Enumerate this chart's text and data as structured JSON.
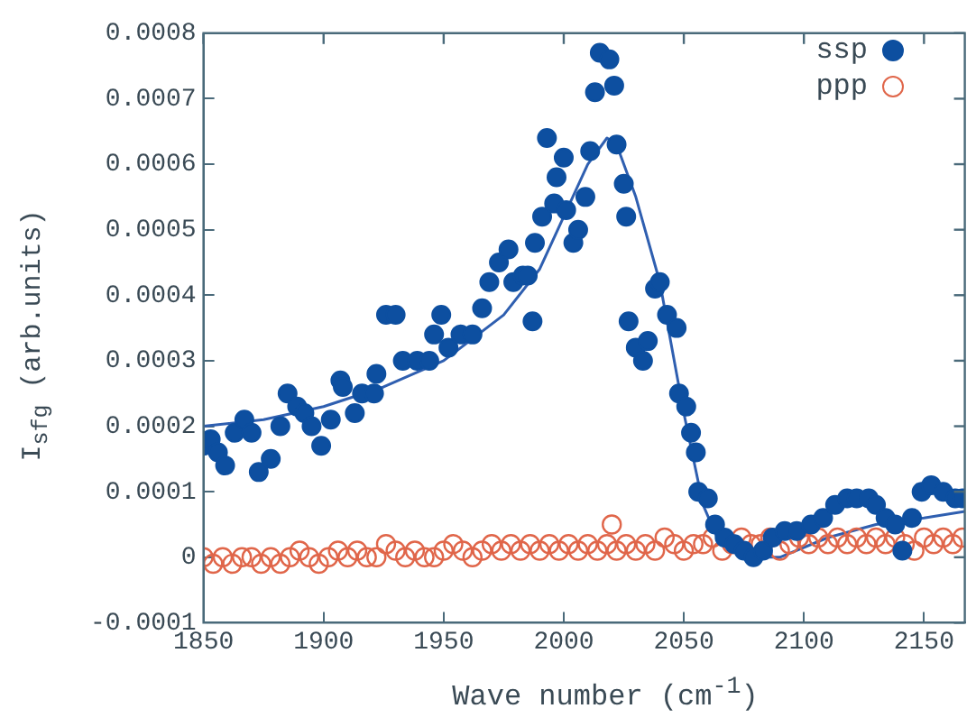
{
  "chart_data": {
    "type": "scatter",
    "xlabel": "Wave number (cm$^{-1}$)",
    "ylabel": "I$_{sfg}$ (arb.units)",
    "xlim": [
      1850,
      2167
    ],
    "xticks": [
      1850,
      1900,
      1950,
      2000,
      2050,
      2100,
      2150
    ],
    "ylim": [
      -0.0001,
      0.0008
    ],
    "yticks": [
      -0.0001,
      0,
      0.0001,
      0.0002,
      0.0003,
      0.0004,
      0.0005,
      0.0006,
      0.0007,
      0.0008
    ],
    "grid": false,
    "legend": "top right",
    "marker": "circle",
    "series": [
      {
        "name": "ssp",
        "color": "#0d4fa0",
        "x": [
          1850,
          1853,
          1856,
          1859,
          1863,
          1867,
          1870,
          1873,
          1878,
          1882,
          1885,
          1889,
          1892,
          1895,
          1899,
          1903,
          1907,
          1908,
          1913,
          1916,
          1921,
          1922,
          1926,
          1930,
          1933,
          1939,
          1944,
          1946,
          1949,
          1952,
          1957,
          1962,
          1966,
          1969,
          1973,
          1977,
          1979,
          1983,
          1985,
          1987,
          1988,
          1991,
          1993,
          1996,
          1997,
          2000,
          2001,
          2004,
          2006,
          2009,
          2011,
          2013,
          2015,
          2019,
          2021,
          2022,
          2025,
          2026,
          2027,
          2030,
          2033,
          2035,
          2038,
          2040,
          2043,
          2047,
          2048,
          2051,
          2053,
          2055,
          2056,
          2060,
          2063,
          2067,
          2071,
          2075,
          2079,
          2083,
          2087,
          2092,
          2097,
          2103,
          2108,
          2113,
          2118,
          2122,
          2127,
          2130,
          2134,
          2138,
          2141,
          2145,
          2149,
          2153,
          2158,
          2163,
          2166
        ],
        "values": [
          0.00017,
          0.00018,
          0.00016,
          0.00014,
          0.00019,
          0.00021,
          0.00019,
          0.00013,
          0.00015,
          0.0002,
          0.00025,
          0.00023,
          0.00022,
          0.0002,
          0.00017,
          0.00021,
          0.00027,
          0.00026,
          0.00022,
          0.00025,
          0.00025,
          0.00028,
          0.00037,
          0.00037,
          0.0003,
          0.0003,
          0.0003,
          0.00034,
          0.00037,
          0.00032,
          0.00034,
          0.00034,
          0.00038,
          0.00042,
          0.00045,
          0.00047,
          0.00042,
          0.00043,
          0.00043,
          0.00036,
          0.00048,
          0.00052,
          0.00064,
          0.00054,
          0.00058,
          0.00061,
          0.00053,
          0.00048,
          0.0005,
          0.00055,
          0.00062,
          0.00071,
          0.00077,
          0.00076,
          0.00072,
          0.00063,
          0.00057,
          0.00052,
          0.00036,
          0.00032,
          0.0003,
          0.00033,
          0.00041,
          0.00042,
          0.00037,
          0.00035,
          0.00025,
          0.00023,
          0.00019,
          0.00016,
          0.0001,
          9e-05,
          5e-05,
          3e-05,
          2e-05,
          1e-05,
          0,
          1e-05,
          3e-05,
          4e-05,
          4e-05,
          5e-05,
          6e-05,
          8e-05,
          9e-05,
          9e-05,
          9e-05,
          8e-05,
          6e-05,
          5e-05,
          1e-05,
          6e-05,
          0.0001,
          0.00011,
          0.0001,
          9e-05,
          9e-05
        ]
      },
      {
        "name": "ppp",
        "color": "#e0664a",
        "x": [
          1850,
          1854,
          1858,
          1862,
          1866,
          1870,
          1874,
          1878,
          1882,
          1886,
          1890,
          1894,
          1898,
          1902,
          1906,
          1910,
          1914,
          1918,
          1922,
          1926,
          1930,
          1934,
          1938,
          1942,
          1946,
          1950,
          1954,
          1958,
          1962,
          1966,
          1970,
          1974,
          1978,
          1982,
          1986,
          1990,
          1994,
          1998,
          2002,
          2006,
          2010,
          2014,
          2018,
          2020,
          2022,
          2026,
          2030,
          2034,
          2038,
          2042,
          2046,
          2050,
          2054,
          2058,
          2062,
          2066,
          2070,
          2074,
          2078,
          2082,
          2086,
          2090,
          2094,
          2098,
          2102,
          2106,
          2110,
          2114,
          2118,
          2122,
          2126,
          2130,
          2134,
          2138,
          2142,
          2146,
          2150,
          2154,
          2158,
          2162,
          2166
        ],
        "values": [
          0,
          -1e-05,
          0,
          -1e-05,
          0,
          0,
          -1e-05,
          0,
          -1e-05,
          0,
          1e-05,
          0,
          -1e-05,
          0,
          1e-05,
          0,
          1e-05,
          0,
          0,
          2e-05,
          1e-05,
          0,
          1e-05,
          0,
          0,
          1e-05,
          2e-05,
          1e-05,
          0,
          1e-05,
          2e-05,
          1e-05,
          2e-05,
          1e-05,
          2e-05,
          1e-05,
          2e-05,
          1e-05,
          2e-05,
          1e-05,
          2e-05,
          1e-05,
          2e-05,
          5e-05,
          1e-05,
          2e-05,
          1e-05,
          2e-05,
          1e-05,
          3e-05,
          2e-05,
          1e-05,
          2e-05,
          2e-05,
          3e-05,
          1e-05,
          2e-05,
          3e-05,
          2e-05,
          2e-05,
          3e-05,
          1e-05,
          2e-05,
          3e-05,
          2e-05,
          3e-05,
          2e-05,
          3e-05,
          2e-05,
          3e-05,
          2e-05,
          3e-05,
          2e-05,
          3e-05,
          2e-05,
          1e-05,
          3e-05,
          2e-05,
          3e-05,
          2e-05,
          3e-05
        ]
      },
      {
        "type": "line",
        "color": "#2f5fb0",
        "marker": "none",
        "x": [
          1850,
          1875,
          1900,
          1925,
          1950,
          1975,
          1990,
          2000,
          2010,
          2018,
          2022,
          2030,
          2040,
          2050,
          2058,
          2065,
          2075,
          2090,
          2110,
          2130,
          2150,
          2167
        ],
        "values": [
          0.0002,
          0.00021,
          0.00023,
          0.00026,
          0.0003,
          0.00037,
          0.00044,
          0.00052,
          0.0006,
          0.00064,
          0.00063,
          0.00055,
          0.00042,
          0.00022,
          8e-05,
          2e-05,
          0,
          0,
          3e-05,
          5e-05,
          6e-05,
          7e-05
        ]
      }
    ]
  }
}
